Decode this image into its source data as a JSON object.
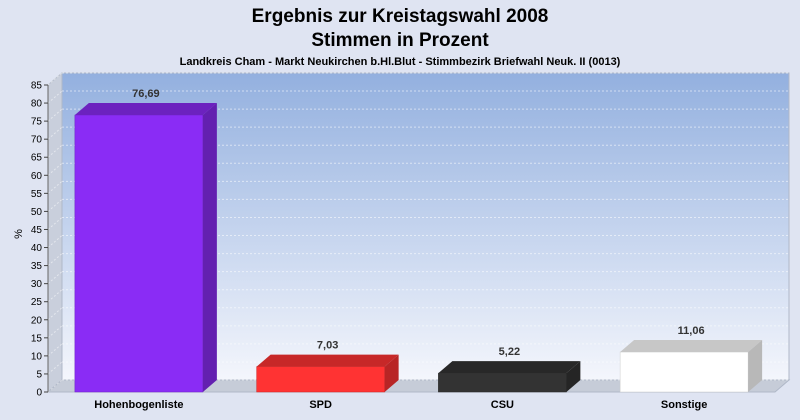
{
  "chart_data": {
    "type": "bar",
    "title": "Ergebnis zur Kreistagswahl 2008",
    "title2": "Stimmen in Prozent",
    "subtitle": "Landkreis Cham - Markt Neukirchen b.Hl.Blut - Stimmbezirk Briefwahl Neuk. II (0013)",
    "ylabel": "%",
    "xlabel": "",
    "ylim": [
      0,
      85
    ],
    "ytick_step": 5,
    "grid": true,
    "categories": [
      "Hohenbogenliste",
      "SPD",
      "CSU",
      "Sonstige"
    ],
    "values": [
      76.69,
      7.03,
      5.22,
      11.06
    ],
    "value_labels": [
      "76,69",
      "7,03",
      "5,22",
      "11,06"
    ],
    "colors": [
      "#8a2cf5",
      "#ff3333",
      "#333333",
      "#ffffff"
    ]
  }
}
